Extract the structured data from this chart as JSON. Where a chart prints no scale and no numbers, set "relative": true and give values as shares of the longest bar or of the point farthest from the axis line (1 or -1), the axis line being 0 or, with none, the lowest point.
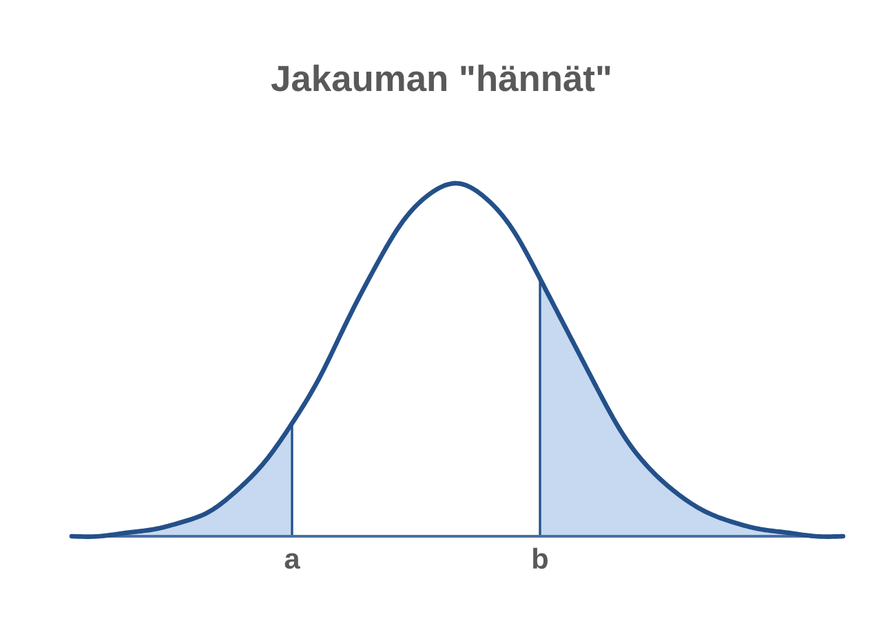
{
  "chart_data": {
    "type": "line",
    "title": "Jakauman \"hännät\"",
    "relative": true,
    "categories": [
      null,
      null,
      null,
      null,
      null,
      null,
      null,
      null,
      "a",
      null,
      null,
      null,
      null,
      null,
      null,
      null,
      null,
      "b",
      null,
      null,
      null,
      null,
      null,
      null,
      null,
      null,
      null,
      null,
      null
    ],
    "series": [
      {
        "type": "area",
        "color": "#c6d9f0",
        "values": [
          0,
          0,
          0.01,
          0.02,
          0.04,
          0.07,
          0.13,
          0.21,
          0.32,
          null,
          null,
          null,
          null,
          null,
          null,
          null,
          null,
          null,
          null,
          null,
          null,
          null,
          null,
          null,
          null,
          null,
          null,
          null,
          null
        ]
      },
      {
        "type": "area",
        "color": "#c6d9f0",
        "values": [
          null,
          null,
          null,
          null,
          null,
          null,
          null,
          null,
          null,
          null,
          null,
          null,
          null,
          null,
          null,
          null,
          null,
          0.73,
          0.58,
          0.43,
          0.29,
          0.19,
          0.12,
          0.07,
          0.04,
          0.02,
          0.01,
          0,
          0
        ]
      },
      {
        "color": "#24508a",
        "values": [
          0,
          0,
          0.01,
          0.02,
          0.04,
          0.07,
          0.13,
          0.21,
          0.32,
          0.45,
          0.61,
          0.76,
          0.89,
          0.97,
          1,
          0.96,
          0.87,
          0.73,
          0.58,
          0.43,
          0.29,
          0.19,
          0.12,
          0.07,
          0.04,
          0.02,
          0.01,
          0,
          0
        ]
      }
    ]
  }
}
